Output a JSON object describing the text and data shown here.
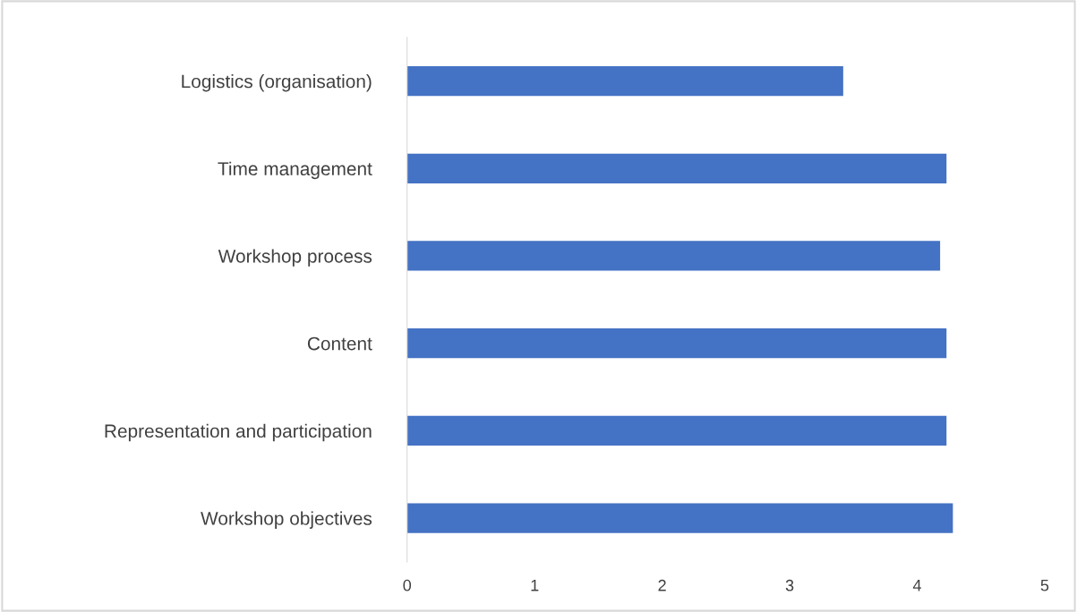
{
  "chart_data": {
    "type": "bar",
    "orientation": "horizontal",
    "categories": [
      "Logistics (organisation)",
      "Time management",
      "Workshop process",
      "Content",
      "Representation and participation",
      "Workshop objectives"
    ],
    "values": [
      3.42,
      4.23,
      4.18,
      4.23,
      4.23,
      4.28
    ],
    "color": "#4472c4",
    "xlim": [
      0,
      5
    ],
    "xticks": [
      0,
      1,
      2,
      3,
      4,
      5
    ],
    "grid": false,
    "legend": false
  }
}
